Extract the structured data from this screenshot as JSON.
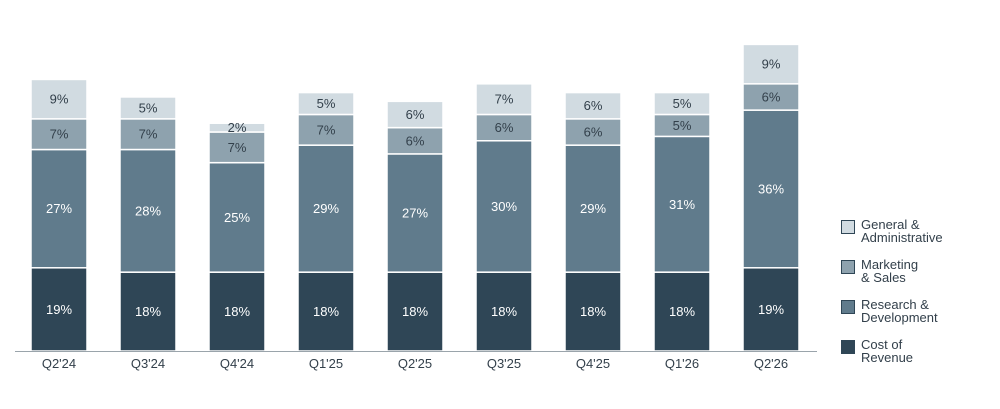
{
  "chart_data": {
    "type": "bar",
    "stacked": true,
    "categories": [
      "Q2'24",
      "Q3'24",
      "Q4'24",
      "Q1'25",
      "Q2'25",
      "Q3'25",
      "Q4'25",
      "Q1'26",
      "Q2'26"
    ],
    "series": [
      {
        "name": "Cost of\nRevenue",
        "color": "#2f4656",
        "values": [
          19,
          18,
          18,
          18,
          18,
          18,
          18,
          18,
          19
        ]
      },
      {
        "name": "Research &\nDevelopment",
        "color": "#607b8c",
        "values": [
          27,
          28,
          25,
          29,
          27,
          30,
          29,
          31,
          36
        ]
      },
      {
        "name": "Marketing\n& Sales",
        "color": "#8ea2ae",
        "values": [
          7,
          7,
          7,
          7,
          6,
          6,
          6,
          5,
          6
        ]
      },
      {
        "name": "General &\nAdministrative",
        "color": "#d1dbe1",
        "values": [
          9,
          5,
          2,
          5,
          6,
          7,
          6,
          5,
          9
        ]
      }
    ],
    "data_labels": [
      [
        "19%",
        "18%",
        "18%",
        "18%",
        "18%",
        "18%",
        "18%",
        "18%",
        "19%"
      ],
      [
        "27%",
        "28%",
        "25%",
        "29%",
        "27%",
        "30%",
        "29%",
        "31%",
        "36%"
      ],
      [
        "7%",
        "7%",
        "7%",
        "7%",
        "6%",
        "6%",
        "6%",
        "5%",
        "6%"
      ],
      [
        "9%",
        "5%",
        "2%",
        "5%",
        "6%",
        "7%",
        "6%",
        "5%",
        "9%"
      ]
    ],
    "title": "",
    "xlabel": "",
    "ylabel": "",
    "ylim": [
      0,
      73
    ],
    "grid": false,
    "legend_position": "right"
  }
}
